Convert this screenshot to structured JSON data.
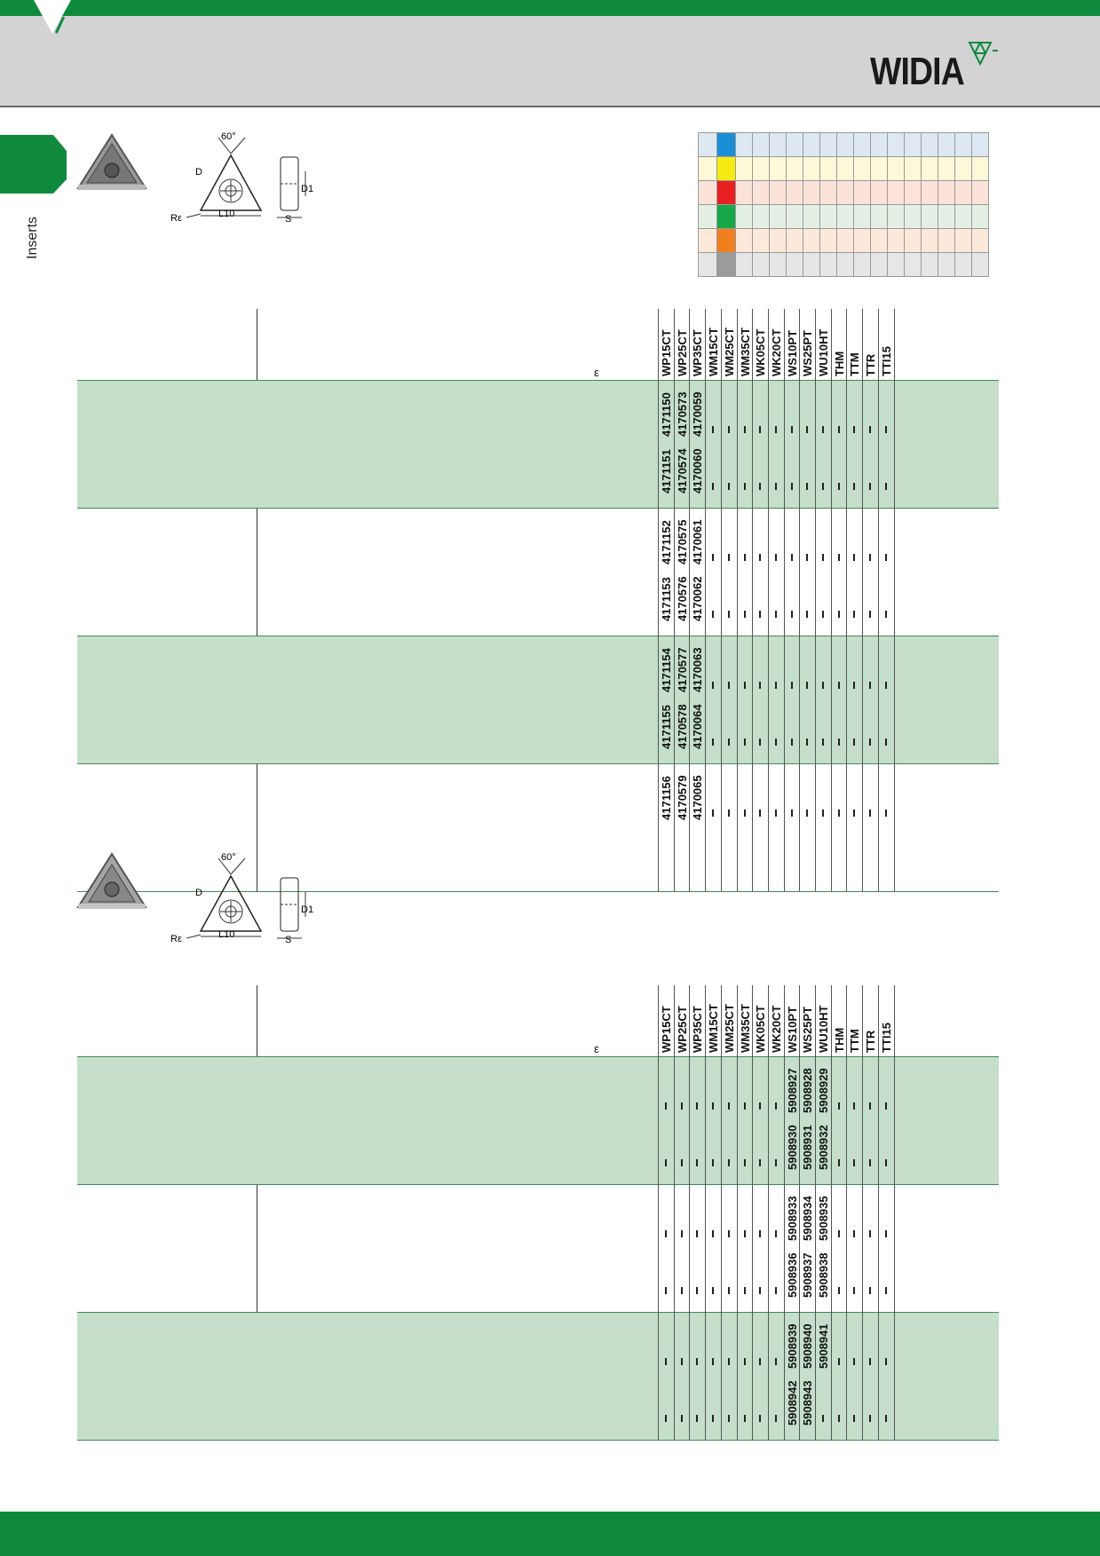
{
  "brand": {
    "name": "WIDIA",
    "accent": "#0f8a3c",
    "header_bg": "#d3d3d4"
  },
  "sidebar": {
    "label": "Inserts"
  },
  "diagram": {
    "angle": "60°",
    "d": "D",
    "d1": "D1",
    "l10": "L10",
    "s": "S",
    "re": "Rε"
  },
  "legend_colors": [
    "#1a8fd6",
    "#f4ec12",
    "#e8201f",
    "#17a84a",
    "#f07f1e",
    "#9b9b9b"
  ],
  "legend_tints": [
    "#dde8f3",
    "#fdf8d8",
    "#fbe3d9",
    "#e4f0e3",
    "#fde9da",
    "#e6e6e6"
  ],
  "grades": [
    "WP15CT",
    "WP25CT",
    "WP35CT",
    "WM15CT",
    "WM25CT",
    "WM35CT",
    "WK05CT",
    "WK20CT",
    "WS10PT",
    "WS25PT",
    "WU10HT",
    "THM",
    "TTM",
    "TTR",
    "TTI15"
  ],
  "epsilon": "ε",
  "table1": {
    "rows": [
      {
        "shaded": true,
        "sub": [
          [
            "4171150",
            "4170573",
            "4170059",
            "-",
            "-",
            "-",
            "-",
            "-",
            "-",
            "-",
            "-",
            "-",
            "-",
            "-",
            "-"
          ],
          [
            "4171151",
            "4170574",
            "4170060",
            "-",
            "-",
            "-",
            "-",
            "-",
            "-",
            "-",
            "-",
            "-",
            "-",
            "-",
            "-"
          ]
        ]
      },
      {
        "shaded": false,
        "sub": [
          [
            "4171152",
            "4170575",
            "4170061",
            "-",
            "-",
            "-",
            "-",
            "-",
            "-",
            "-",
            "-",
            "-",
            "-",
            "-",
            "-"
          ],
          [
            "4171153",
            "4170576",
            "4170062",
            "-",
            "-",
            "-",
            "-",
            "-",
            "-",
            "-",
            "-",
            "-",
            "-",
            "-",
            "-"
          ]
        ]
      },
      {
        "shaded": true,
        "sub": [
          [
            "4171154",
            "4170577",
            "4170063",
            "-",
            "-",
            "-",
            "-",
            "-",
            "-",
            "-",
            "-",
            "-",
            "-",
            "-",
            "-"
          ],
          [
            "4171155",
            "4170578",
            "4170064",
            "-",
            "-",
            "-",
            "-",
            "-",
            "-",
            "-",
            "-",
            "-",
            "-",
            "-",
            "-"
          ]
        ]
      },
      {
        "shaded": false,
        "sub": [
          [
            "4171156",
            "4170579",
            "4170065",
            "-",
            "-",
            "-",
            "-",
            "-",
            "-",
            "-",
            "-",
            "-",
            "-",
            "-",
            "-"
          ]
        ]
      }
    ]
  },
  "table2": {
    "rows": [
      {
        "shaded": true,
        "sub": [
          [
            "-",
            "-",
            "-",
            "-",
            "-",
            "-",
            "-",
            "-",
            "5908927",
            "5908928",
            "5908929",
            "-",
            "-",
            "-",
            "-"
          ],
          [
            "-",
            "-",
            "-",
            "-",
            "-",
            "-",
            "-",
            "-",
            "5908930",
            "5908931",
            "5908932",
            "-",
            "-",
            "-",
            "-"
          ]
        ]
      },
      {
        "shaded": false,
        "sub": [
          [
            "-",
            "-",
            "-",
            "-",
            "-",
            "-",
            "-",
            "-",
            "5908933",
            "5908934",
            "5908935",
            "-",
            "-",
            "-",
            "-"
          ],
          [
            "-",
            "-",
            "-",
            "-",
            "-",
            "-",
            "-",
            "-",
            "5908936",
            "5908937",
            "5908938",
            "-",
            "-",
            "-",
            "-"
          ]
        ]
      },
      {
        "shaded": true,
        "sub": [
          [
            "-",
            "-",
            "-",
            "-",
            "-",
            "-",
            "-",
            "-",
            "5908939",
            "5908940",
            "5908941",
            "-",
            "-",
            "-",
            "-"
          ],
          [
            "-",
            "-",
            "-",
            "-",
            "-",
            "-",
            "-",
            "-",
            "5908942",
            "5908943",
            "-",
            "-",
            "-",
            "-",
            "-"
          ]
        ]
      }
    ]
  }
}
